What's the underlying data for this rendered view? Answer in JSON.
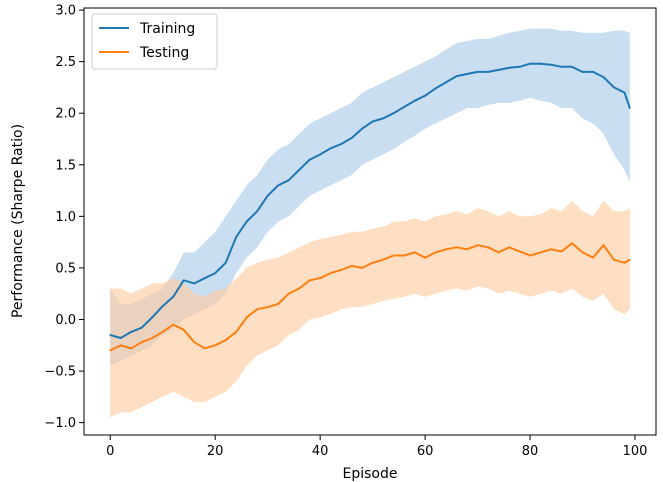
{
  "chart_data": {
    "type": "line",
    "title": "",
    "xlabel": "Episode",
    "ylabel": "Performance (Sharpe Ratio)",
    "xlim": [
      -5,
      104
    ],
    "ylim": [
      -1.12,
      3.02
    ],
    "xticks": [
      0,
      20,
      40,
      60,
      80,
      100
    ],
    "yticks": [
      -1.0,
      -0.5,
      0.0,
      0.5,
      1.0,
      1.5,
      2.0,
      2.5,
      3.0
    ],
    "ytick_labels": [
      "−1.0",
      "−0.5",
      "0.0",
      "0.5",
      "1.0",
      "1.5",
      "2.0",
      "2.5",
      "3.0"
    ],
    "xtick_labels": [
      "0",
      "20",
      "40",
      "60",
      "80",
      "100"
    ],
    "grid": false,
    "legend_position": "top-left",
    "series": [
      {
        "name": "Training",
        "color": "#1f77b4",
        "band_color": "#a9c9e8",
        "x": [
          0,
          2,
          4,
          6,
          8,
          10,
          12,
          14,
          16,
          18,
          20,
          22,
          24,
          26,
          28,
          30,
          32,
          34,
          36,
          38,
          40,
          42,
          44,
          46,
          48,
          50,
          52,
          54,
          56,
          58,
          60,
          62,
          64,
          66,
          68,
          70,
          72,
          74,
          76,
          78,
          80,
          82,
          84,
          86,
          88,
          90,
          92,
          94,
          96,
          98,
          99
        ],
        "values": [
          -0.15,
          -0.18,
          -0.12,
          -0.08,
          0.02,
          0.13,
          0.22,
          0.38,
          0.35,
          0.4,
          0.45,
          0.55,
          0.8,
          0.95,
          1.05,
          1.2,
          1.3,
          1.35,
          1.45,
          1.55,
          1.6,
          1.66,
          1.7,
          1.76,
          1.85,
          1.92,
          1.95,
          2.0,
          2.06,
          2.12,
          2.17,
          2.24,
          2.3,
          2.36,
          2.38,
          2.4,
          2.4,
          2.42,
          2.44,
          2.45,
          2.48,
          2.48,
          2.47,
          2.45,
          2.45,
          2.4,
          2.4,
          2.35,
          2.25,
          2.2,
          2.05
        ],
        "lower": [
          -0.45,
          -0.4,
          -0.35,
          -0.3,
          -0.25,
          -0.15,
          -0.1,
          0.0,
          0.05,
          0.1,
          0.15,
          0.25,
          0.45,
          0.6,
          0.7,
          0.85,
          0.95,
          1.0,
          1.1,
          1.2,
          1.25,
          1.3,
          1.35,
          1.4,
          1.5,
          1.55,
          1.6,
          1.65,
          1.72,
          1.78,
          1.85,
          1.9,
          1.95,
          2.0,
          2.05,
          2.05,
          2.08,
          2.1,
          2.1,
          2.12,
          2.15,
          2.12,
          2.1,
          2.05,
          2.05,
          1.95,
          1.9,
          1.8,
          1.6,
          1.45,
          1.33
        ],
        "upper": [
          0.3,
          0.15,
          0.15,
          0.2,
          0.25,
          0.3,
          0.45,
          0.65,
          0.65,
          0.75,
          0.85,
          1.0,
          1.15,
          1.3,
          1.4,
          1.55,
          1.65,
          1.7,
          1.8,
          1.9,
          1.95,
          2.0,
          2.05,
          2.1,
          2.2,
          2.25,
          2.3,
          2.35,
          2.4,
          2.45,
          2.5,
          2.55,
          2.62,
          2.68,
          2.7,
          2.72,
          2.72,
          2.75,
          2.78,
          2.8,
          2.82,
          2.82,
          2.82,
          2.8,
          2.8,
          2.78,
          2.78,
          2.78,
          2.8,
          2.8,
          2.78
        ]
      },
      {
        "name": "Testing",
        "color": "#ff7f0e",
        "band_color": "#ffcb9e",
        "x": [
          0,
          2,
          4,
          6,
          8,
          10,
          12,
          14,
          16,
          18,
          20,
          22,
          24,
          26,
          28,
          30,
          32,
          34,
          36,
          38,
          40,
          42,
          44,
          46,
          48,
          50,
          52,
          54,
          56,
          58,
          60,
          62,
          64,
          66,
          68,
          70,
          72,
          74,
          76,
          78,
          80,
          82,
          84,
          86,
          88,
          90,
          92,
          94,
          96,
          98,
          99
        ],
        "values": [
          -0.3,
          -0.25,
          -0.28,
          -0.22,
          -0.18,
          -0.12,
          -0.05,
          -0.1,
          -0.22,
          -0.28,
          -0.25,
          -0.2,
          -0.12,
          0.02,
          0.1,
          0.12,
          0.15,
          0.25,
          0.3,
          0.38,
          0.4,
          0.45,
          0.48,
          0.52,
          0.5,
          0.55,
          0.58,
          0.62,
          0.62,
          0.65,
          0.6,
          0.65,
          0.68,
          0.7,
          0.68,
          0.72,
          0.7,
          0.65,
          0.7,
          0.66,
          0.62,
          0.65,
          0.68,
          0.66,
          0.74,
          0.65,
          0.6,
          0.72,
          0.58,
          0.55,
          0.58
        ],
        "lower": [
          -0.95,
          -0.9,
          -0.9,
          -0.85,
          -0.8,
          -0.75,
          -0.7,
          -0.75,
          -0.8,
          -0.8,
          -0.75,
          -0.7,
          -0.6,
          -0.45,
          -0.35,
          -0.3,
          -0.25,
          -0.15,
          -0.1,
          0.0,
          0.02,
          0.05,
          0.1,
          0.12,
          0.12,
          0.15,
          0.18,
          0.2,
          0.22,
          0.25,
          0.22,
          0.25,
          0.28,
          0.3,
          0.28,
          0.32,
          0.3,
          0.25,
          0.28,
          0.25,
          0.22,
          0.25,
          0.28,
          0.25,
          0.3,
          0.22,
          0.18,
          0.25,
          0.1,
          0.05,
          0.1
        ],
        "upper": [
          0.3,
          0.3,
          0.25,
          0.3,
          0.35,
          0.35,
          0.4,
          0.35,
          0.25,
          0.22,
          0.28,
          0.3,
          0.4,
          0.5,
          0.55,
          0.58,
          0.6,
          0.65,
          0.7,
          0.75,
          0.78,
          0.8,
          0.82,
          0.85,
          0.85,
          0.88,
          0.9,
          0.95,
          0.95,
          0.98,
          0.95,
          1.0,
          1.02,
          1.05,
          1.02,
          1.08,
          1.05,
          1.0,
          1.05,
          1.0,
          1.0,
          1.02,
          1.08,
          1.05,
          1.15,
          1.05,
          1.0,
          1.15,
          1.05,
          1.05,
          1.08
        ]
      }
    ]
  }
}
